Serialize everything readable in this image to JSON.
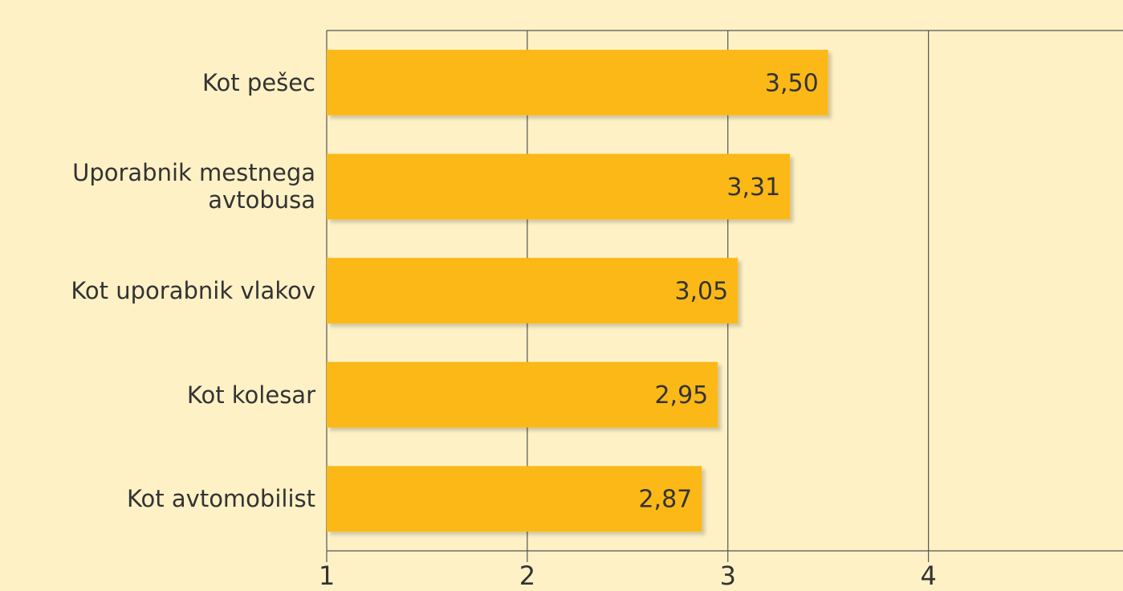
{
  "chart_data": {
    "type": "bar",
    "orientation": "horizontal",
    "categories": [
      "Kot pešec",
      "Uporabnik mestnega avtobusa",
      "Kot uporabnik vlakov",
      "Kot kolesar",
      "Kot avtomobilist"
    ],
    "values": [
      3.5,
      3.31,
      3.05,
      2.95,
      2.87
    ],
    "value_labels": [
      "3,50",
      "3,31",
      "3,05",
      "2,95",
      "2,87"
    ],
    "color": "#fbb818",
    "xlim": [
      1,
      4.97
    ],
    "xticks": [
      1,
      2,
      3,
      4
    ],
    "grid": true
  }
}
